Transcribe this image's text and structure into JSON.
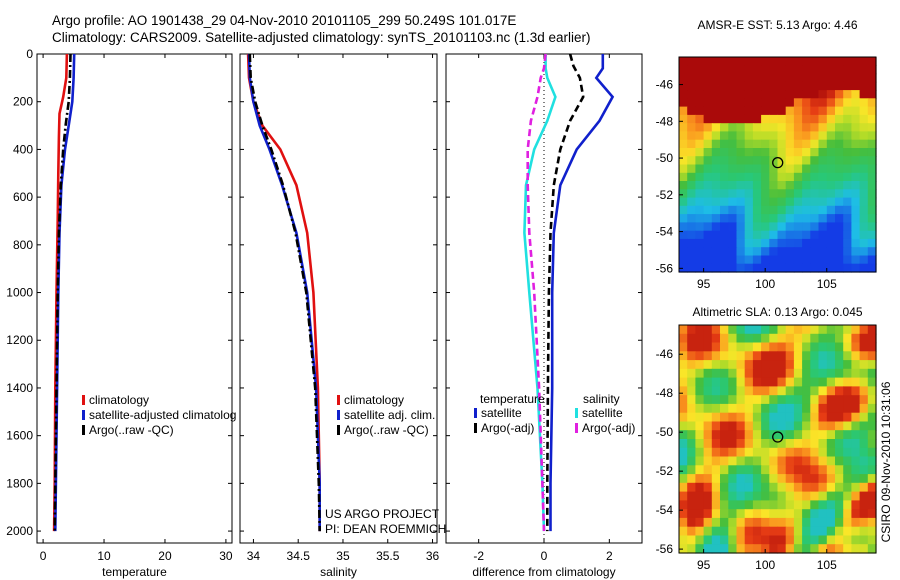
{
  "header": {
    "line1": "Argo profile: AO 1901438_29 04-Nov-2010 20101105_299 50.249S 101.017E",
    "line2": "Climatology: CARS2009. Satellite-adjusted climatology: synTS_20101103.nc (1.3d earlier)"
  },
  "colors": {
    "red": "#e01010",
    "blue": "#1020cc",
    "black": "#000000",
    "cyan": "#20e0e0",
    "magenta": "#e020e0"
  },
  "chart_data": [
    {
      "type": "line",
      "xlabel": "temperature",
      "xlim": [
        -1,
        31
      ],
      "xticks": [
        0,
        10,
        20,
        30
      ],
      "ylim": [
        2050,
        0
      ],
      "yticks": [
        0,
        200,
        400,
        600,
        800,
        1000,
        1200,
        1400,
        1600,
        1800,
        2000
      ],
      "legend": [
        "climatology",
        "satellite-adjusted climatolog",
        "Argo(..raw -QC)"
      ],
      "series": [
        {
          "name": "climatology",
          "color": "red",
          "dash": "solid",
          "x": [
            3.9,
            3.8,
            3.3,
            2.7,
            2.6,
            2.5,
            2.4,
            2.2,
            2.0,
            1.9,
            1.8
          ],
          "y": [
            0,
            100,
            180,
            250,
            350,
            500,
            700,
            1000,
            1400,
            1800,
            2000
          ]
        },
        {
          "name": "satellite-adjusted climatolog",
          "color": "blue",
          "dash": "solid",
          "x": [
            5.1,
            5.0,
            4.8,
            4.2,
            3.6,
            3.0,
            2.7,
            2.5,
            2.3,
            2.1,
            2.0
          ],
          "y": [
            0,
            100,
            200,
            300,
            400,
            550,
            750,
            1000,
            1400,
            1800,
            2000
          ]
        },
        {
          "name": "Argo(..raw -QC)",
          "color": "black",
          "dash": "dashdot",
          "x": [
            4.5,
            4.4,
            4.2,
            3.7,
            3.3,
            2.9,
            2.6,
            2.4,
            2.2,
            2.0,
            1.9
          ],
          "y": [
            0,
            100,
            200,
            300,
            400,
            550,
            750,
            1000,
            1400,
            1800,
            2000
          ]
        }
      ]
    },
    {
      "type": "line",
      "xlabel": "salinity",
      "xlim": [
        33.85,
        36.05
      ],
      "xticks": [
        34,
        34.5,
        35,
        35.5,
        36
      ],
      "ylim": [
        2050,
        0
      ],
      "legend": [
        "climatology",
        "satellite adj. clim.",
        "Argo(..raw -QC)"
      ],
      "annotation": [
        "US ARGO PROJECT",
        "PI: DEAN ROEMMICH"
      ],
      "series": [
        {
          "name": "climatology",
          "color": "red",
          "dash": "solid",
          "x": [
            33.94,
            33.95,
            34.0,
            34.1,
            34.3,
            34.48,
            34.6,
            34.67,
            34.72,
            34.74,
            34.74
          ],
          "y": [
            0,
            100,
            200,
            300,
            400,
            550,
            750,
            1000,
            1400,
            1800,
            2000
          ]
        },
        {
          "name": "satellite adj. clim.",
          "color": "blue",
          "dash": "solid",
          "x": [
            33.95,
            33.96,
            34.0,
            34.07,
            34.18,
            34.32,
            34.48,
            34.6,
            34.7,
            34.74,
            34.74
          ],
          "y": [
            0,
            100,
            200,
            300,
            400,
            550,
            750,
            1000,
            1400,
            1800,
            2000
          ]
        },
        {
          "name": "Argo(..raw -QC)",
          "color": "black",
          "dash": "dashdot",
          "x": [
            33.96,
            33.97,
            34.02,
            34.1,
            34.2,
            34.33,
            34.47,
            34.59,
            34.69,
            34.73,
            34.74
          ],
          "y": [
            0,
            100,
            200,
            300,
            400,
            550,
            750,
            1000,
            1400,
            1800,
            2000
          ]
        }
      ]
    },
    {
      "type": "line",
      "xlabel": "difference from climatology",
      "xlim": [
        -3,
        3
      ],
      "xticks": [
        -2,
        0,
        2
      ],
      "ylim": [
        2050,
        0
      ],
      "legend_titles": [
        "temperature",
        "salinity"
      ],
      "legend": [
        "satellite",
        "Argo(-adj)",
        "satellite",
        "Argo(-adj)"
      ],
      "series": [
        {
          "name": "temperature satellite",
          "color": "blue",
          "dash": "solid",
          "x": [
            1.8,
            1.8,
            1.6,
            2.1,
            1.7,
            1.0,
            0.5,
            0.3,
            0.25,
            0.25,
            0.2,
            0.2
          ],
          "y": [
            0,
            60,
            100,
            180,
            280,
            400,
            550,
            750,
            1000,
            1400,
            1800,
            2000
          ]
        },
        {
          "name": "temperature Argo(-adj)",
          "color": "black",
          "dash": "dashed",
          "x": [
            0.8,
            0.9,
            1.1,
            1.2,
            0.8,
            0.5,
            0.3,
            0.2,
            0.15,
            0.12,
            0.1,
            0.1
          ],
          "y": [
            0,
            50,
            100,
            180,
            280,
            400,
            550,
            750,
            1000,
            1400,
            1800,
            2000
          ]
        },
        {
          "name": "salinity satellite",
          "color": "cyan",
          "dash": "solid",
          "x": [
            0.05,
            0.05,
            0.1,
            0.35,
            0.1,
            -0.3,
            -0.55,
            -0.6,
            -0.45,
            -0.2,
            -0.05,
            0.0
          ],
          "y": [
            0,
            60,
            100,
            180,
            280,
            400,
            550,
            750,
            1000,
            1400,
            1800,
            2000
          ]
        },
        {
          "name": "salinity Argo(-adj)",
          "color": "magenta",
          "dash": "dashed",
          "x": [
            0.05,
            0.0,
            -0.1,
            -0.2,
            -0.4,
            -0.5,
            -0.5,
            -0.45,
            -0.3,
            -0.15,
            -0.05,
            0.0
          ],
          "y": [
            0,
            60,
            100,
            180,
            280,
            400,
            550,
            750,
            1000,
            1400,
            1800,
            2000
          ]
        }
      ]
    },
    {
      "type": "heatmap",
      "title": "AMSR-E SST: 5.13 Argo: 4.46",
      "xticks": [
        95,
        100,
        105
      ],
      "yticks": [
        -46,
        -48,
        -50,
        -52,
        -54,
        -56
      ],
      "xlim": [
        93,
        109
      ],
      "ylim": [
        -56.2,
        -44.5
      ],
      "marker": {
        "lon": 101.017,
        "lat": -50.249
      }
    },
    {
      "type": "heatmap",
      "title": "Altimetric SLA: 0.13 Argo: 0.045",
      "xticks": [
        95,
        100,
        105
      ],
      "yticks": [
        -46,
        -48,
        -50,
        -52,
        -54,
        -56
      ],
      "xlim": [
        93,
        109
      ],
      "ylim": [
        -56.2,
        -44.5
      ],
      "marker": {
        "lon": 101.017,
        "lat": -50.249
      }
    }
  ],
  "side_text": "CSIRO 09-Nov-2010 10:31:06"
}
